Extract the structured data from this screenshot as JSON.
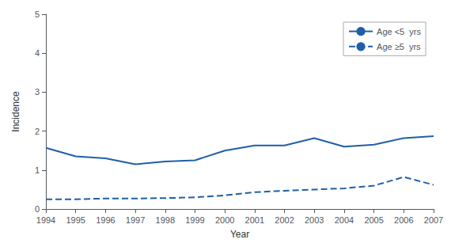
{
  "chart_data": {
    "type": "line",
    "xlabel": "Year",
    "ylabel": "Incidence",
    "x": [
      1994,
      1995,
      1996,
      1997,
      1998,
      1999,
      2000,
      2001,
      2002,
      2003,
      2004,
      2005,
      2006,
      2007
    ],
    "series": [
      {
        "name": "Age <5  yrs",
        "color": "#1f5fa6",
        "line_style": "solid",
        "values": [
          1.57,
          1.35,
          1.3,
          1.15,
          1.22,
          1.25,
          1.5,
          1.63,
          1.63,
          1.82,
          1.6,
          1.65,
          1.82,
          1.87
        ]
      },
      {
        "name": "Age ≥5  yrs",
        "color": "#1f5fa6",
        "line_style": "dashed",
        "values": [
          0.25,
          0.25,
          0.27,
          0.27,
          0.28,
          0.3,
          0.35,
          0.43,
          0.47,
          0.5,
          0.53,
          0.6,
          0.82,
          0.62
        ]
      }
    ],
    "xlim": [
      1994,
      2007
    ],
    "xticks": [
      1994,
      1995,
      1996,
      1997,
      1998,
      1999,
      2000,
      2001,
      2002,
      2003,
      2004,
      2005,
      2006,
      2007
    ],
    "ylim": [
      0,
      5
    ],
    "yticks": [
      0,
      1,
      2,
      3,
      4,
      5
    ],
    "grid": false,
    "legend": "upper right"
  }
}
